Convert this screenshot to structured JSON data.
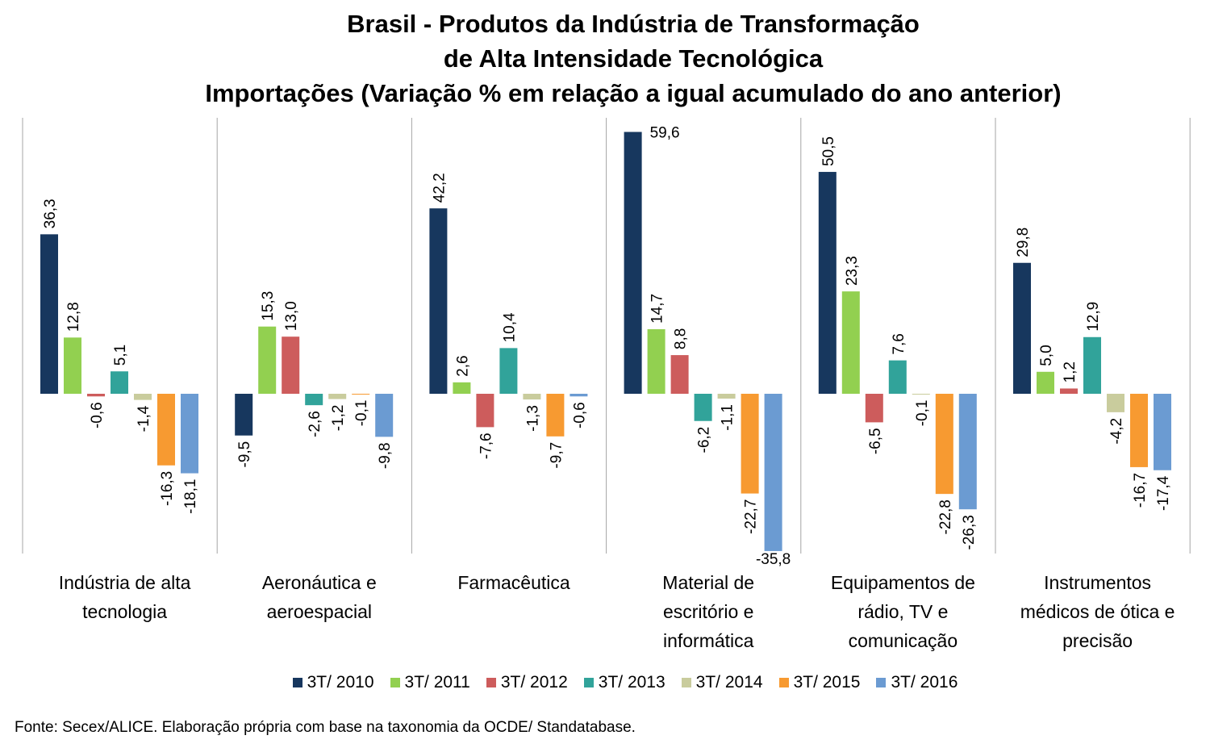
{
  "chart_data": {
    "type": "bar",
    "title": [
      "Brasil - Produtos da Indústria de Transformação",
      "de Alta Intensidade Tecnológica",
      "Importações (Variação % em relação a igual acumulado do ano anterior)"
    ],
    "categories": [
      [
        "Indústria de alta",
        "tecnologia"
      ],
      [
        "Aeronáutica e",
        "aeroespacial"
      ],
      [
        "Farmacêutica"
      ],
      [
        "Material de",
        "escritório e",
        "informática"
      ],
      [
        "Equipamentos de",
        "rádio, TV e",
        "comunicação"
      ],
      [
        "Instrumentos",
        "médicos de ótica e",
        "precisão"
      ]
    ],
    "series": [
      {
        "name": "3T/ 2010",
        "color": "#17375E",
        "values": [
          36.3,
          -9.5,
          42.2,
          59.6,
          50.5,
          29.8
        ],
        "labels": [
          "36,3",
          "-9,5",
          "42,2",
          "59,6",
          "50,5",
          "29,8"
        ]
      },
      {
        "name": "3T/ 2011",
        "color": "#92D050",
        "values": [
          12.8,
          15.3,
          2.6,
          14.7,
          23.3,
          5.0
        ],
        "labels": [
          "12,8",
          "15,3",
          "2,6",
          "14,7",
          "23,3",
          "5,0"
        ]
      },
      {
        "name": "3T/ 2012",
        "color": "#CD5C5C",
        "values": [
          -0.6,
          13.0,
          -7.6,
          8.8,
          -6.5,
          1.2
        ],
        "labels": [
          "-0,6",
          "13,0",
          "-7,6",
          "8,8",
          "-6,5",
          "1,2"
        ]
      },
      {
        "name": "3T/ 2013",
        "color": "#31A39A",
        "values": [
          5.1,
          -2.6,
          10.4,
          -6.2,
          7.6,
          12.9
        ],
        "labels": [
          "5,1",
          "-2,6",
          "10,4",
          "-6,2",
          "7,6",
          "12,9"
        ]
      },
      {
        "name": "3T/ 2014",
        "color": "#C9CC9D",
        "values": [
          -1.4,
          -1.2,
          -1.3,
          -1.1,
          -0.1,
          -4.2
        ],
        "labels": [
          "-1,4",
          "-1,2",
          "-1,3",
          "-1,1",
          "-0,1",
          "-4,2"
        ]
      },
      {
        "name": "3T/ 2015",
        "color": "#F79A31",
        "values": [
          -16.3,
          -0.1,
          -9.7,
          -22.7,
          -22.8,
          -16.7
        ],
        "labels": [
          "-16,3",
          "-0,1",
          "-9,7",
          "-22,7",
          "-22,8",
          "-16,7"
        ]
      },
      {
        "name": "3T/ 2016",
        "color": "#6B9BD2",
        "values": [
          -18.1,
          -9.8,
          -0.6,
          -35.8,
          -26.3,
          -17.4
        ],
        "labels": [
          "-18,1",
          "-9,8",
          "-0,6",
          "-35,8",
          "-26,3",
          "-17,4"
        ]
      }
    ],
    "ylim": [
      -36,
      60
    ],
    "grid": false,
    "legend_position": "bottom"
  },
  "source": "Fonte: Secex/ALICE. Elaboração própria com base na taxonomia da OCDE/ Standatabase."
}
